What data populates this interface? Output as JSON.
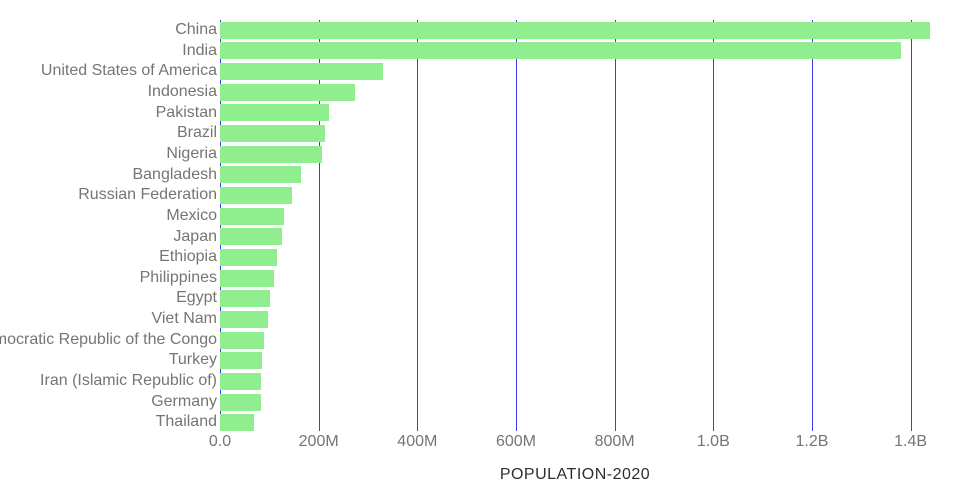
{
  "chart_data": {
    "type": "bar",
    "orientation": "horizontal",
    "title": "",
    "xlabel": "POPULATION-2020",
    "ylabel": "",
    "categories": [
      "China",
      "India",
      "United States of America",
      "Indonesia",
      "Pakistan",
      "Brazil",
      "Nigeria",
      "Bangladesh",
      "Russian Federation",
      "Mexico",
      "Japan",
      "Ethiopia",
      "Philippines",
      "Egypt",
      "Viet Nam",
      "Democratic Republic of the Congo",
      "Turkey",
      "Iran (Islamic Republic of)",
      "Germany",
      "Thailand"
    ],
    "values": [
      1439323776,
      1380004385,
      331002651,
      273523615,
      220892340,
      212559417,
      206139589,
      164689383,
      145934462,
      128932753,
      126476461,
      114963588,
      109581078,
      102334404,
      97338579,
      89561403,
      84339067,
      83992949,
      83783942,
      69799978
    ],
    "xlim": [
      0,
      1439323776
    ],
    "x_ticks": [
      {
        "label": "0.0",
        "value": 0
      },
      {
        "label": "200M",
        "value": 200000000
      },
      {
        "label": "400M",
        "value": 400000000
      },
      {
        "label": "600M",
        "value": 600000000
      },
      {
        "label": "800M",
        "value": 800000000
      },
      {
        "label": "1.0B",
        "value": 1000000000
      },
      {
        "label": "1.2B",
        "value": 1200000000
      },
      {
        "label": "1.4B",
        "value": 1400000000
      }
    ],
    "grid": true,
    "legend": false,
    "colors": {
      "bar": "#90ee90",
      "gridline": "#3c3cf0",
      "tick_label": "#757575",
      "category_label": "#757575",
      "axis_title": "#2e2e2e",
      "background": "#ffffff"
    }
  }
}
